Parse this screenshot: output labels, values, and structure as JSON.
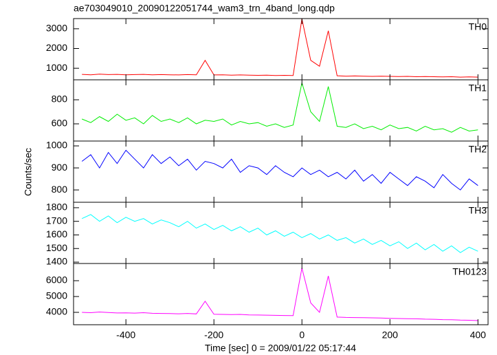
{
  "chart_data": {
    "type": "line",
    "title": "ae703049010_20090122051744_wam3_trn_4band_long.qdp",
    "xlabel": "Time [sec] 0 = 2009/01/22 05:17:44",
    "ylabel": "Counts/sec",
    "xlim": [
      -519,
      423
    ],
    "xticks": [
      -400,
      -200,
      0,
      200,
      400
    ],
    "x": [
      -500,
      -480,
      -460,
      -440,
      -420,
      -400,
      -380,
      -360,
      -340,
      -320,
      -300,
      -280,
      -260,
      -240,
      -220,
      -200,
      -180,
      -160,
      -140,
      -120,
      -100,
      -80,
      -60,
      -40,
      -20,
      0,
      20,
      40,
      60,
      80,
      100,
      120,
      140,
      160,
      180,
      200,
      220,
      240,
      260,
      280,
      300,
      320,
      340,
      360,
      380,
      400
    ],
    "series": [
      {
        "name": "TH0",
        "color": "#ff0000",
        "ylim": [
          414,
          3517
        ],
        "yticks": [
          1000,
          2000,
          3000
        ],
        "values": [
          690,
          670,
          700,
          680,
          690,
          670,
          680,
          690,
          670,
          680,
          670,
          660,
          680,
          670,
          1400,
          660,
          670,
          650,
          660,
          650,
          640,
          650,
          630,
          640,
          630,
          3500,
          1400,
          1100,
          2900,
          620,
          600,
          610,
          600,
          590,
          600,
          590,
          580,
          590,
          570,
          580,
          570,
          560,
          570,
          550,
          560,
          550
        ]
      },
      {
        "name": "TH1",
        "color": "#00ee00",
        "ylim": [
          457,
          966
        ],
        "yticks": [
          600,
          800
        ],
        "values": [
          640,
          610,
          660,
          620,
          680,
          630,
          650,
          600,
          670,
          620,
          640,
          610,
          650,
          600,
          630,
          620,
          640,
          590,
          620,
          600,
          610,
          580,
          600,
          570,
          590,
          940,
          700,
          620,
          910,
          580,
          570,
          600,
          560,
          580,
          550,
          590,
          560,
          570,
          540,
          580,
          550,
          560,
          530,
          570,
          540,
          550
        ]
      },
      {
        "name": "TH2",
        "color": "#0000ff",
        "ylim": [
          744,
          1022
        ],
        "yticks": [
          800,
          900,
          1000
        ],
        "values": [
          930,
          960,
          900,
          970,
          920,
          980,
          940,
          900,
          960,
          920,
          950,
          910,
          940,
          890,
          930,
          920,
          900,
          940,
          880,
          910,
          900,
          870,
          910,
          880,
          860,
          900,
          870,
          890,
          860,
          880,
          850,
          890,
          840,
          870,
          830,
          880,
          850,
          820,
          860,
          840,
          810,
          870,
          830,
          800,
          850,
          820
        ]
      },
      {
        "name": "TH3",
        "color": "#00ffff",
        "ylim": [
          1390,
          1840
        ],
        "yticks": [
          1400,
          1500,
          1600,
          1700,
          1800
        ],
        "values": [
          1720,
          1750,
          1700,
          1740,
          1690,
          1730,
          1700,
          1720,
          1680,
          1710,
          1690,
          1660,
          1700,
          1650,
          1680,
          1640,
          1670,
          1630,
          1660,
          1620,
          1650,
          1600,
          1630,
          1590,
          1620,
          1580,
          1610,
          1570,
          1600,
          1560,
          1580,
          1540,
          1570,
          1530,
          1560,
          1520,
          1550,
          1500,
          1540,
          1490,
          1530,
          1480,
          1520,
          1470,
          1510,
          1480
        ]
      },
      {
        "name": "TH0123",
        "color": "#ff00ff",
        "ylim": [
          3217,
          7087
        ],
        "yticks": [
          4000,
          5000,
          6000
        ],
        "values": [
          4000,
          3980,
          4020,
          3990,
          3960,
          3970,
          3950,
          3980,
          3940,
          3930,
          3920,
          3910,
          3930,
          3900,
          4700,
          3880,
          3870,
          3860,
          3870,
          3840,
          3830,
          3820,
          3810,
          3800,
          3790,
          6800,
          4600,
          4000,
          6300,
          3700,
          3680,
          3670,
          3660,
          3650,
          3640,
          3620,
          3610,
          3600,
          3590,
          3570,
          3560,
          3540,
          3530,
          3510,
          3500,
          3480
        ]
      }
    ]
  }
}
